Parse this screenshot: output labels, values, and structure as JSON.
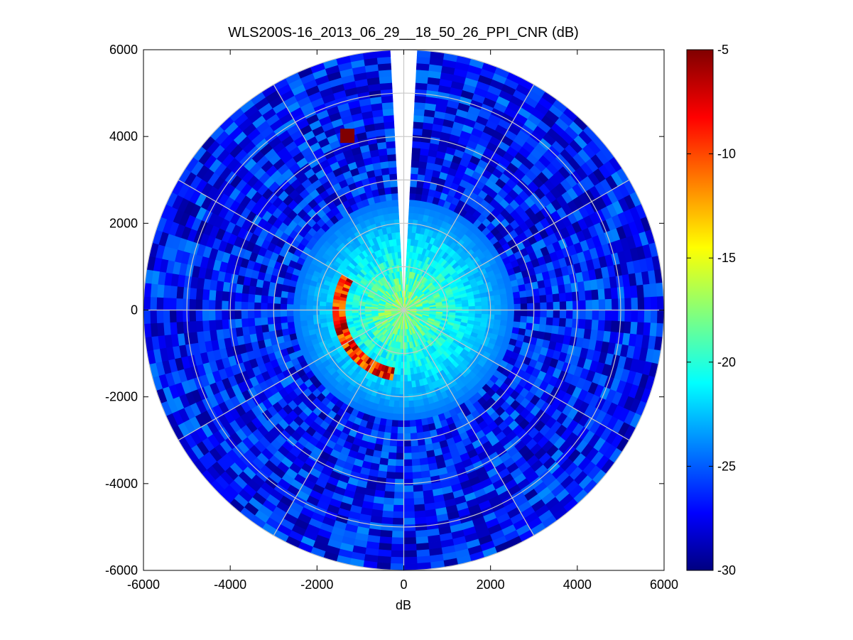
{
  "chart_data": {
    "type": "heatmap",
    "subtype": "polar-ppi",
    "title": "WLS200S-16_2013_06_29__18_50_26_PPI_CNR (dB)",
    "xlabel": "dB",
    "ylabel": "",
    "xlim": [
      -6000,
      6000
    ],
    "ylim": [
      -6000,
      6000
    ],
    "xticks": [
      -6000,
      -4000,
      -2000,
      0,
      2000,
      4000,
      6000
    ],
    "yticks": [
      -6000,
      -4000,
      -2000,
      0,
      2000,
      4000,
      6000
    ],
    "xtick_labels": [
      "-6000",
      "-4000",
      "-2000",
      "0",
      "2000",
      "4000",
      "6000"
    ],
    "ytick_labels": [
      "-6000",
      "-4000",
      "-2000",
      "0",
      "2000",
      "4000",
      "6000"
    ],
    "grid": true,
    "polar_grid": {
      "ring_radii": [
        1000,
        2000,
        3000,
        4000,
        5000,
        6000
      ],
      "spoke_angles_deg": [
        0,
        30,
        60,
        90,
        120,
        150,
        180,
        210,
        240,
        270,
        300,
        330
      ]
    },
    "max_range": 6000,
    "colorbar": {
      "colormap": "jet",
      "range": [
        -30,
        -5
      ],
      "ticks": [
        -5,
        -10,
        -15,
        -20,
        -25,
        -30
      ],
      "tick_labels": [
        "-5",
        "-10",
        "-15",
        "-20",
        "-25",
        "-30"
      ]
    },
    "missing_sector_azimuth_deg": [
      -4,
      4
    ],
    "features": [
      {
        "kind": "near-field",
        "radius_max": 2500,
        "value_range": [
          -20,
          -14
        ]
      },
      {
        "kind": "arc",
        "radius": [
          1300,
          1700
        ],
        "azimuth_deg": [
          -90,
          160
        ],
        "value_range": [
          -12,
          -5
        ]
      },
      {
        "kind": "background",
        "radius_min": 2500,
        "value_range": [
          -30,
          -20
        ]
      },
      {
        "kind": "hot-spot",
        "x": -1300,
        "y": 3950,
        "value": -5
      }
    ]
  }
}
